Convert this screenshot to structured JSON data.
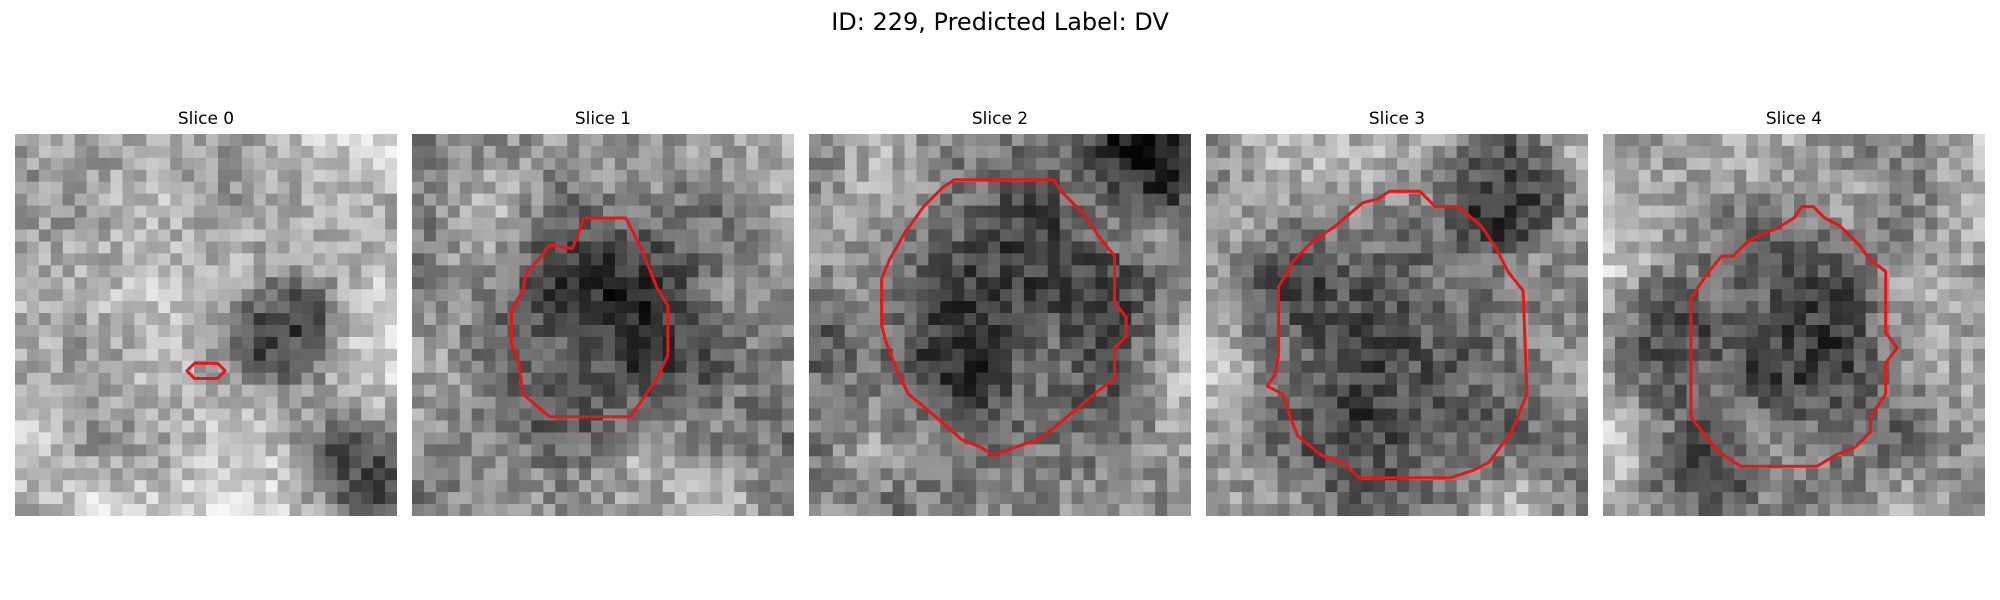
{
  "figure": {
    "title": "ID: 229, Predicted Label: DV"
  },
  "outline_color": "#e81616",
  "panels": [
    {
      "title": "Slice 0"
    },
    {
      "title": "Slice 1"
    },
    {
      "title": "Slice 2"
    },
    {
      "title": "Slice 3"
    },
    {
      "title": "Slice 4"
    }
  ]
}
